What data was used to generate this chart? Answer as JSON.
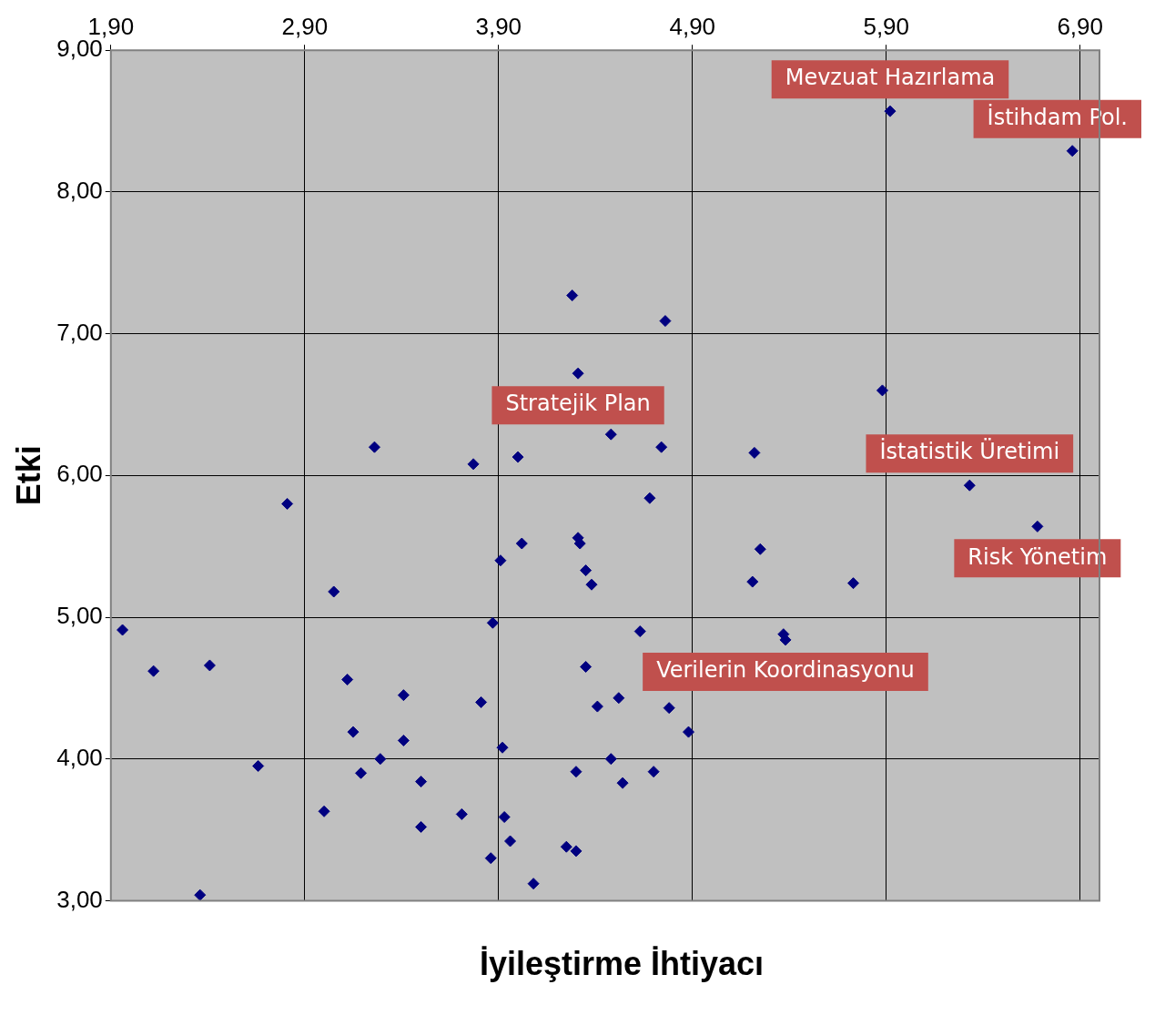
{
  "chart_data": {
    "type": "scatter",
    "xlabel": "İyileştirme İhtiyacı",
    "ylabel": "Etki",
    "x": [
      1.96,
      2.12,
      2.41,
      2.36,
      2.66,
      2.81,
      3.0,
      3.05,
      3.12,
      3.15,
      3.19,
      3.26,
      3.29,
      3.41,
      3.41,
      3.5,
      3.5,
      3.71,
      3.77,
      3.81,
      3.87,
      3.86,
      3.91,
      3.92,
      3.93,
      3.96,
      4.0,
      4.02,
      4.08,
      4.25,
      4.28,
      4.3,
      4.3,
      4.31,
      4.31,
      4.32,
      4.35,
      4.35,
      4.38,
      4.41,
      4.48,
      4.48,
      4.52,
      4.54,
      4.63,
      4.68,
      4.7,
      4.74,
      4.76,
      4.78,
      4.88,
      5.21,
      5.22,
      5.25,
      5.37,
      5.38,
      5.73,
      5.88,
      5.92,
      6.33,
      6.68,
      6.86
    ],
    "series": [
      {
        "color": "#000080",
        "values": [
          4.91,
          4.62,
          4.66,
          3.04,
          3.95,
          5.8,
          3.63,
          5.18,
          4.56,
          4.19,
          3.9,
          6.2,
          4.0,
          4.45,
          4.13,
          3.84,
          3.52,
          3.61,
          6.08,
          4.4,
          4.96,
          3.3,
          5.4,
          4.08,
          3.59,
          3.42,
          6.13,
          5.52,
          3.12,
          3.38,
          7.27,
          3.35,
          3.91,
          6.72,
          5.56,
          5.52,
          5.33,
          4.65,
          5.23,
          4.37,
          6.29,
          4.0,
          4.43,
          3.83,
          4.9,
          5.84,
          3.91,
          6.2,
          7.09,
          4.36,
          4.19,
          5.25,
          6.16,
          5.48,
          4.88,
          4.84,
          5.24,
          6.6,
          8.57,
          5.93,
          5.64,
          8.29
        ]
      }
    ],
    "xlim": [
      1.9,
      7.0
    ],
    "ylim": [
      3,
      9
    ],
    "xticks": [
      {
        "value": 1.9,
        "label": "1,90"
      },
      {
        "value": 2.9,
        "label": "2,90"
      },
      {
        "value": 3.9,
        "label": "3,90"
      },
      {
        "value": 4.9,
        "label": "4,90"
      },
      {
        "value": 5.9,
        "label": "5,90"
      },
      {
        "value": 6.9,
        "label": "6,90"
      }
    ],
    "yticks": [
      {
        "value": 3,
        "label": "3,00"
      },
      {
        "value": 4,
        "label": "4,00"
      },
      {
        "value": 5,
        "label": "5,00"
      },
      {
        "value": 6,
        "label": "6,00"
      },
      {
        "value": 7,
        "label": "7,00"
      },
      {
        "value": 8,
        "label": "8,00"
      },
      {
        "value": 9,
        "label": "9,00"
      }
    ],
    "grid": true,
    "legend": false,
    "marker": "diamond",
    "annotations": [
      {
        "text": "Mevzuat Hazırlama",
        "x": 5.92,
        "y": 8.57
      },
      {
        "text": "İstihdam Pol.",
        "x": 6.86,
        "y": 8.29
      },
      {
        "text": "Stratejik Plan",
        "x": 4.31,
        "y": 6.72
      },
      {
        "text": "İstatistik Üretimi",
        "x": 6.33,
        "y": 5.93
      },
      {
        "text": "Risk Yönetim",
        "x": 6.68,
        "y": 5.64
      },
      {
        "text": "Verilerin Koordinasyonu",
        "x": 5.38,
        "y": 4.84
      }
    ]
  }
}
